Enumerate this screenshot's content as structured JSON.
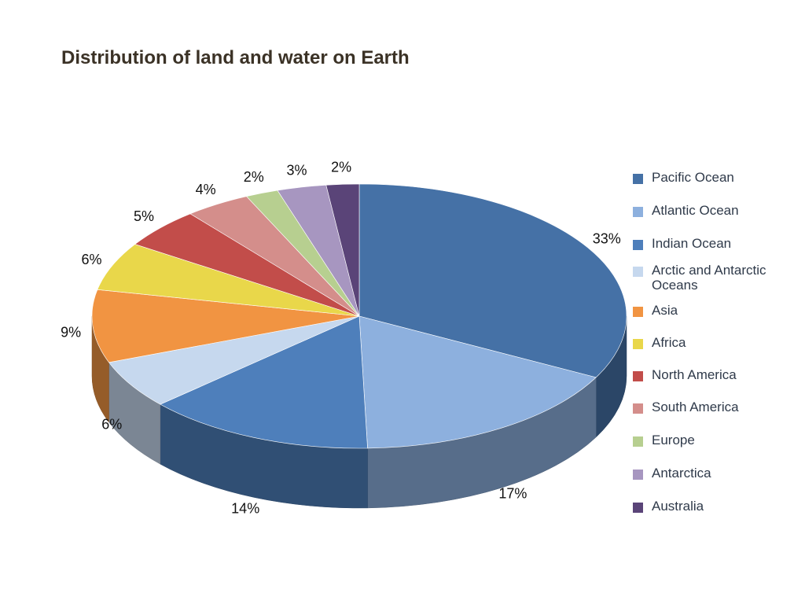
{
  "chart_data": {
    "type": "pie",
    "title": "Distribution of land and water on Earth",
    "three_d": true,
    "legend_position": "right",
    "categories": [
      "Pacific Ocean",
      "Atlantic Ocean",
      "Indian Ocean",
      "Arctic and Antarctic Oceans",
      "Asia",
      "Africa",
      "North America",
      "South America",
      "Europe",
      "Antarctica",
      "Australia"
    ],
    "values": [
      33,
      17,
      14,
      6,
      9,
      6,
      5,
      4,
      2,
      3,
      2
    ],
    "data_labels": [
      "33%",
      "17%",
      "14%",
      "6%",
      "9%",
      "6%",
      "5%",
      "4%",
      "2%",
      "3%",
      "2%"
    ],
    "colors": [
      "#4571a6",
      "#8db0de",
      "#4e7fbb",
      "#c6d8ee",
      "#f19442",
      "#e9d74a",
      "#c24d4a",
      "#d48e8b",
      "#b7cf90",
      "#a796c0",
      "#5a4478"
    ]
  }
}
